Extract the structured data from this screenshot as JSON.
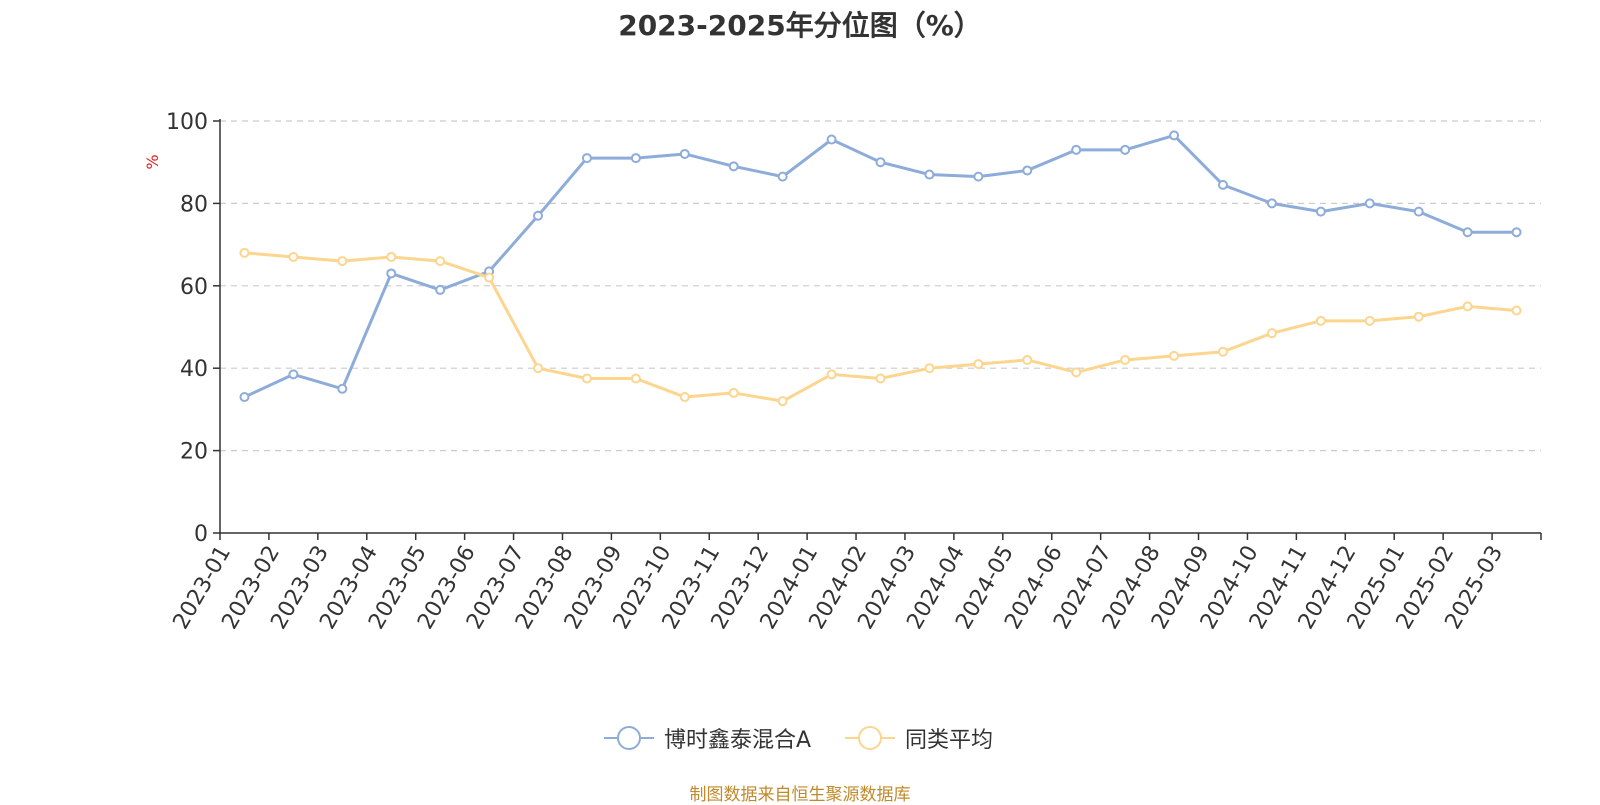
{
  "chart_data": {
    "type": "line",
    "title": "2023-2025年分位图（%）",
    "ylabel": "%",
    "ylim": [
      0,
      100
    ],
    "yticks": [
      0,
      20,
      40,
      60,
      80,
      100
    ],
    "grid": true,
    "legend_position": "bottom-center",
    "categories": [
      "2023-01",
      "2023-02",
      "2023-03",
      "2023-04",
      "2023-05",
      "2023-06",
      "2023-07",
      "2023-08",
      "2023-09",
      "2023-10",
      "2023-11",
      "2023-12",
      "2024-01",
      "2024-02",
      "2024-03",
      "2024-04",
      "2024-05",
      "2024-06",
      "2024-07",
      "2024-08",
      "2024-09",
      "2024-10",
      "2024-11",
      "2024-12",
      "2025-01",
      "2025-02",
      "2025-03"
    ],
    "series": [
      {
        "name": "博时鑫泰混合A",
        "color": "#8eacd9",
        "values": [
          33,
          38.5,
          35,
          63,
          59,
          63.5,
          77,
          91,
          91,
          92,
          89,
          86.5,
          95.5,
          90,
          87,
          86.5,
          88,
          93,
          93,
          96.5,
          84.5,
          80,
          78,
          80,
          78,
          73,
          73
        ]
      },
      {
        "name": "同类平均",
        "color": "#fcd58f",
        "values": [
          68,
          67,
          66,
          67,
          66,
          62,
          40,
          37.5,
          37.5,
          33,
          34,
          32,
          38.5,
          37.5,
          40,
          41,
          42,
          39,
          42,
          43,
          44,
          48.5,
          51.5,
          51.5,
          52.5,
          55,
          54
        ]
      }
    ]
  },
  "source_text": "制图数据来自恒生聚源数据库"
}
